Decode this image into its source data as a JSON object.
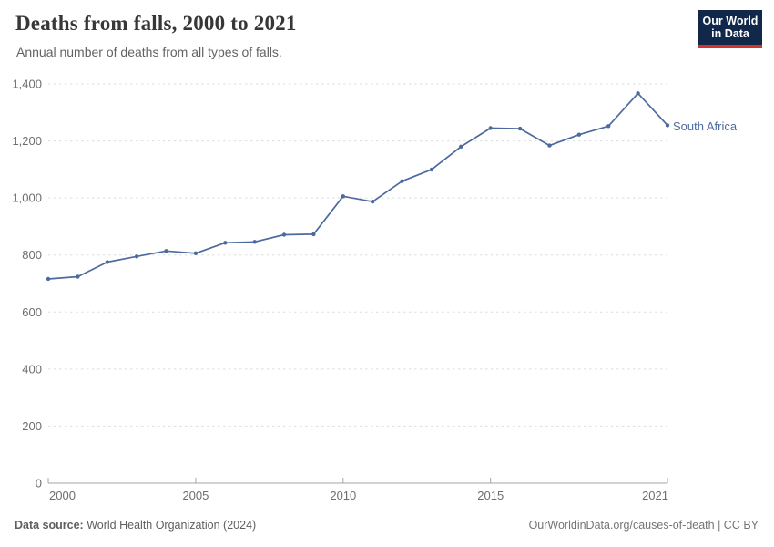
{
  "header": {
    "title": "Deaths from falls, 2000 to 2021",
    "subtitle": "Annual number of deaths from all types of falls.",
    "logo": {
      "line1": "Our World",
      "line2": "in Data"
    }
  },
  "footer": {
    "source_label": "Data source:",
    "source_value": "World Health Organization (2024)",
    "credit": "OurWorldinData.org/causes-of-death | CC BY"
  },
  "colors": {
    "line": "#4C6A9C",
    "logo_bg": "#12284B",
    "logo_stripe": "#D1342B",
    "grid": "#DDDDDD",
    "axis": "#A5A5A5",
    "tick_text": "#6E6E6E",
    "title_text": "#373737",
    "subtitle_text": "#636363"
  },
  "chart_data": {
    "type": "line",
    "title": "Deaths from falls, 2000 to 2021",
    "subtitle": "Annual number of deaths from all types of falls.",
    "xlabel": "",
    "ylabel": "",
    "x": [
      2000,
      2001,
      2002,
      2003,
      2004,
      2005,
      2006,
      2007,
      2008,
      2009,
      2010,
      2011,
      2012,
      2013,
      2014,
      2015,
      2016,
      2017,
      2018,
      2019,
      2020,
      2021
    ],
    "series": [
      {
        "name": "South Africa",
        "color": "#4C6A9C",
        "values": [
          716,
          724,
          775,
          795,
          814,
          806,
          843,
          846,
          871,
          873,
          1006,
          987,
          1059,
          1100,
          1180,
          1245,
          1243,
          1184,
          1222,
          1252,
          1367,
          1255
        ]
      }
    ],
    "ylim": [
      0,
      1400
    ],
    "yticks": [
      0,
      200,
      400,
      600,
      800,
      1000,
      1200,
      1400
    ],
    "xticks": [
      2000,
      2005,
      2010,
      2015,
      2021
    ],
    "grid": "horizontal-dashed",
    "legend_position": "line-end-label"
  }
}
